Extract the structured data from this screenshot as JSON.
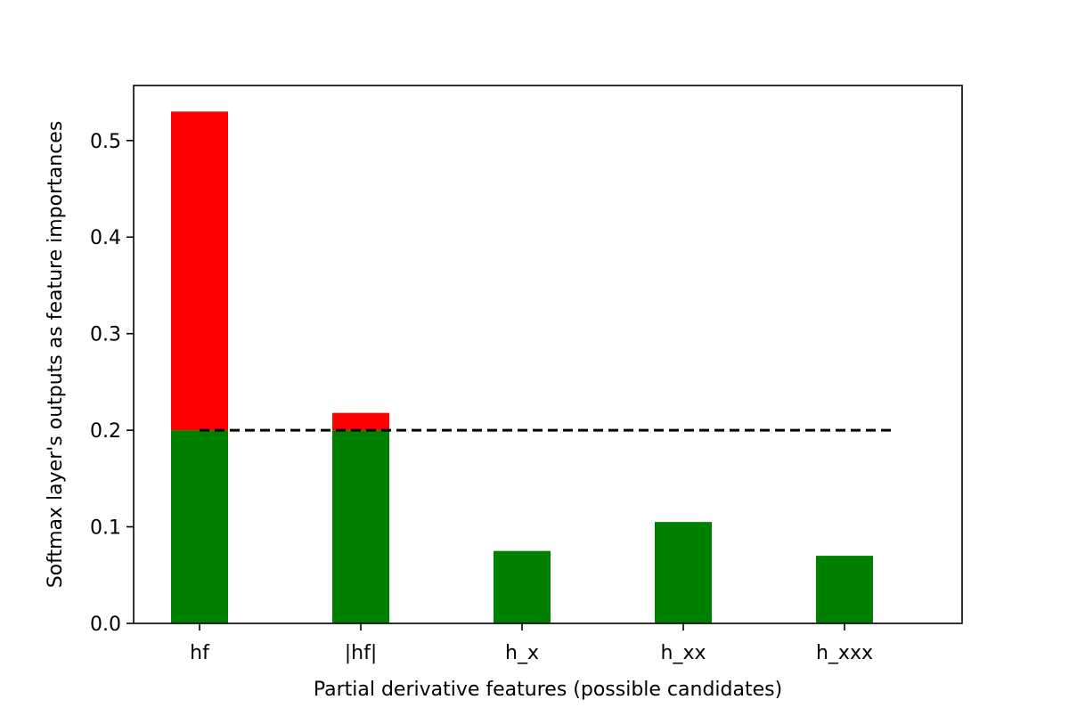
{
  "chart_data": {
    "type": "bar",
    "stacked": true,
    "categories": [
      "hf",
      "|hf|",
      "h_x",
      "h_xx",
      "h_xxx"
    ],
    "series": [
      {
        "key": "base",
        "color": "#008000",
        "values": [
          0.2,
          0.2,
          0.075,
          0.105,
          0.07
        ]
      },
      {
        "key": "excess",
        "color": "#ff0000",
        "values": [
          0.33,
          0.018,
          0.0,
          0.0,
          0.0
        ]
      }
    ],
    "threshold": {
      "value": 0.2,
      "style": "dashed",
      "color": "#000000"
    },
    "xlabel": "Partial derivative features (possible candidates)",
    "ylabel": "Softmax layer's outputs as feature importances",
    "ylim": [
      0,
      0.557
    ],
    "yticks": [
      0.0,
      0.1,
      0.2,
      0.3,
      0.4,
      0.5
    ],
    "ytick_labels": [
      "0.0",
      "0.1",
      "0.2",
      "0.3",
      "0.4",
      "0.5"
    ],
    "grid": false
  }
}
